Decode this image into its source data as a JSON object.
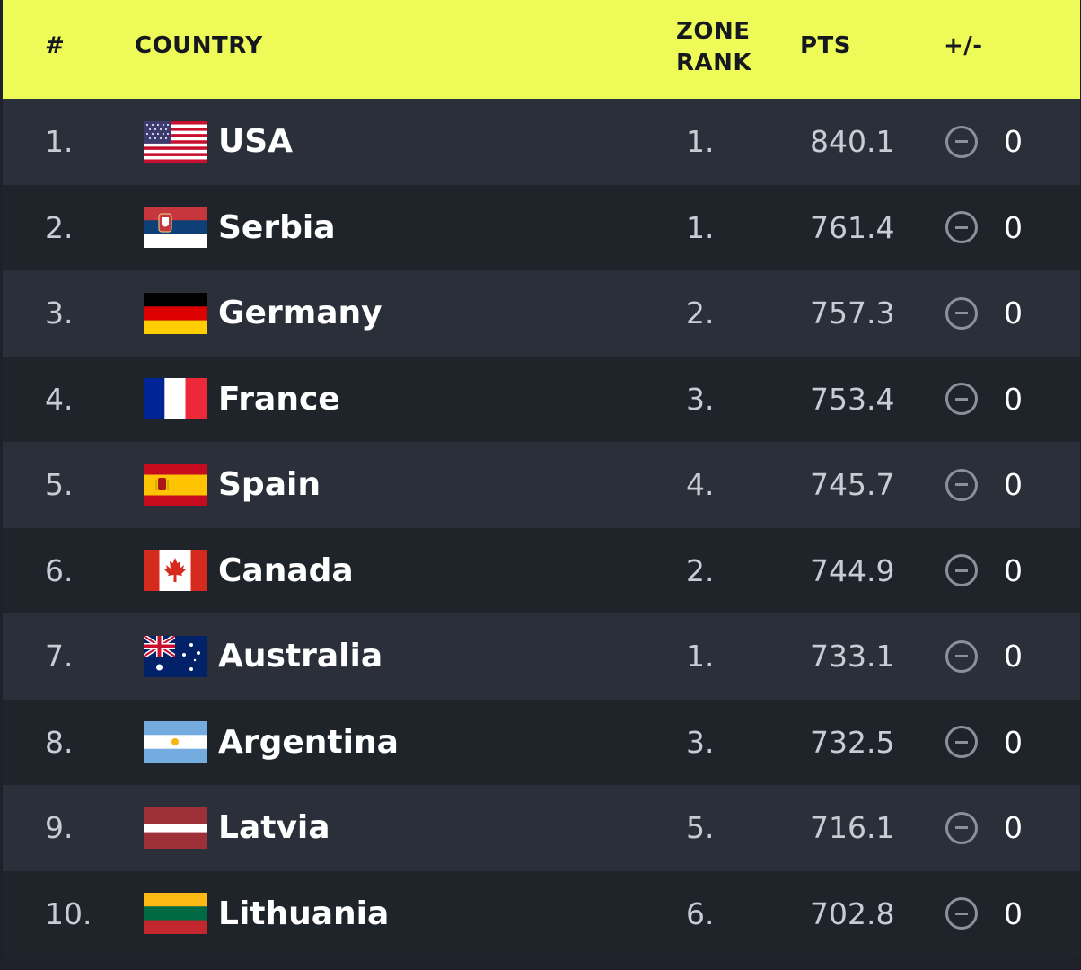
{
  "header": {
    "rank": "#",
    "country": "COUNTRY",
    "zone_rank_line1": "ZONE",
    "zone_rank_line2": "RANK",
    "pts": "PTS",
    "change": "+/-"
  },
  "colors": {
    "header_bg": "#eefa58",
    "row_odd": "#2b2f39",
    "row_even": "#1f232a"
  },
  "rows": [
    {
      "rank": "1.",
      "country": "USA",
      "flag": "usa-flag",
      "zone_rank": "1.",
      "pts": "840.1",
      "move_icon": "no-change-icon",
      "change": "0"
    },
    {
      "rank": "2.",
      "country": "Serbia",
      "flag": "serbia-flag",
      "zone_rank": "1.",
      "pts": "761.4",
      "move_icon": "no-change-icon",
      "change": "0"
    },
    {
      "rank": "3.",
      "country": "Germany",
      "flag": "germany-flag",
      "zone_rank": "2.",
      "pts": "757.3",
      "move_icon": "no-change-icon",
      "change": "0"
    },
    {
      "rank": "4.",
      "country": "France",
      "flag": "france-flag",
      "zone_rank": "3.",
      "pts": "753.4",
      "move_icon": "no-change-icon",
      "change": "0"
    },
    {
      "rank": "5.",
      "country": "Spain",
      "flag": "spain-flag",
      "zone_rank": "4.",
      "pts": "745.7",
      "move_icon": "no-change-icon",
      "change": "0"
    },
    {
      "rank": "6.",
      "country": "Canada",
      "flag": "canada-flag",
      "zone_rank": "2.",
      "pts": "744.9",
      "move_icon": "no-change-icon",
      "change": "0"
    },
    {
      "rank": "7.",
      "country": "Australia",
      "flag": "australia-flag",
      "zone_rank": "1.",
      "pts": "733.1",
      "move_icon": "no-change-icon",
      "change": "0"
    },
    {
      "rank": "8.",
      "country": "Argentina",
      "flag": "argentina-flag",
      "zone_rank": "3.",
      "pts": "732.5",
      "move_icon": "no-change-icon",
      "change": "0"
    },
    {
      "rank": "9.",
      "country": "Latvia",
      "flag": "latvia-flag",
      "zone_rank": "5.",
      "pts": "716.1",
      "move_icon": "no-change-icon",
      "change": "0"
    },
    {
      "rank": "10.",
      "country": "Lithuania",
      "flag": "lithuania-flag",
      "zone_rank": "6.",
      "pts": "702.8",
      "move_icon": "no-change-icon",
      "change": "0"
    }
  ]
}
